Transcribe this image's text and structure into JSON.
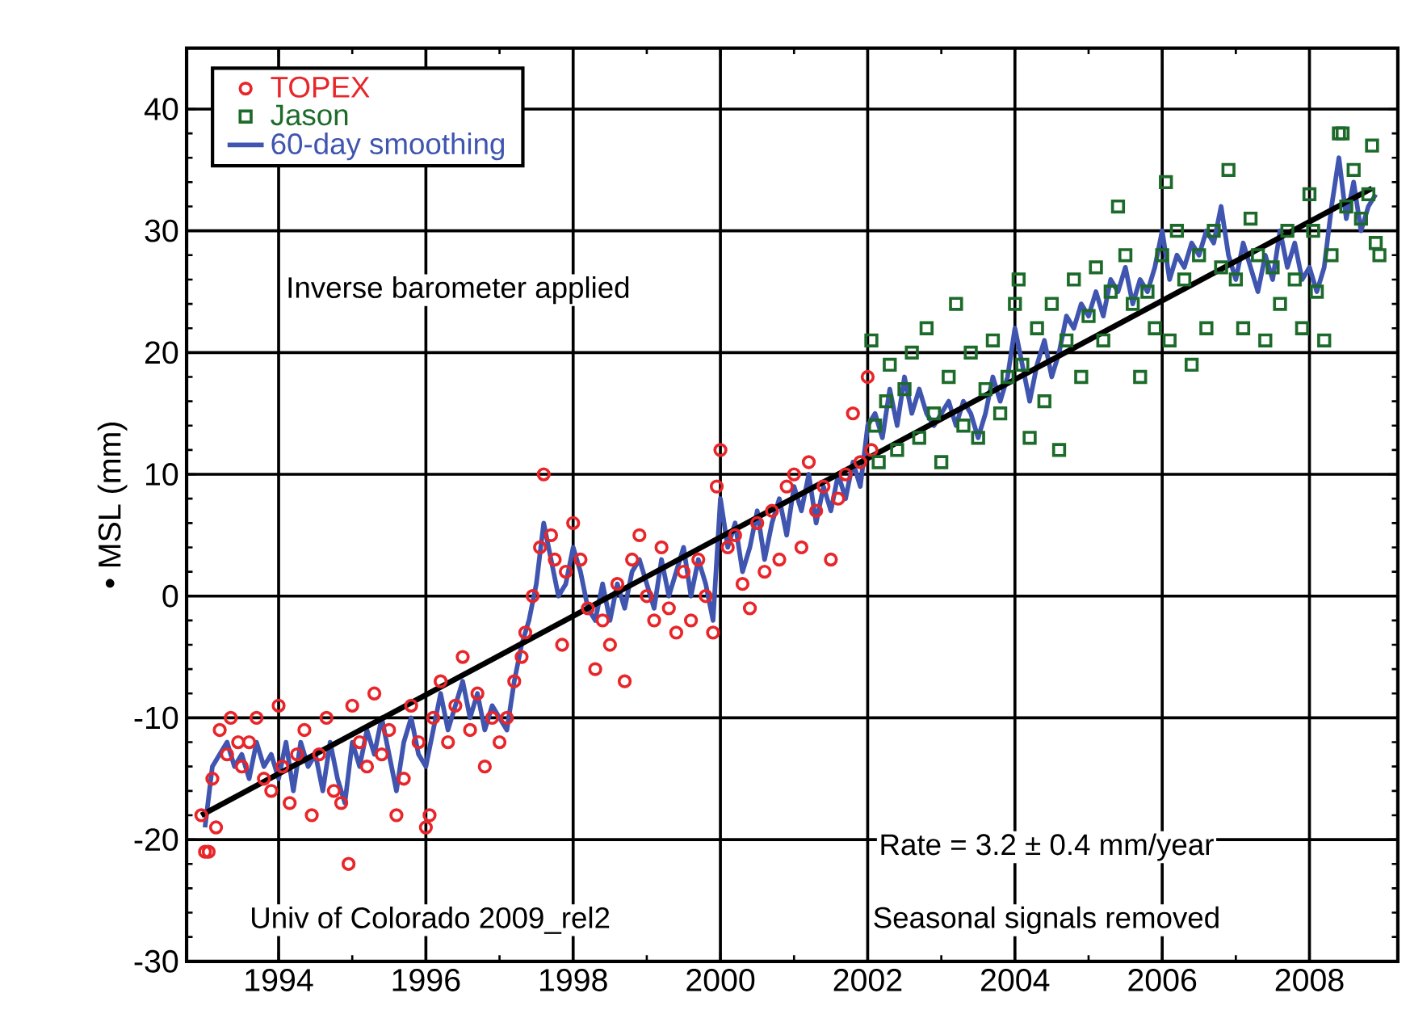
{
  "chart_data": {
    "type": "scatter",
    "ylabel": "• MSL (mm)",
    "xlim": [
      1992.75,
      2009.2
    ],
    "ylim": [
      -30,
      45
    ],
    "xticks": [
      1994,
      1996,
      1998,
      2000,
      2002,
      2004,
      2006,
      2008
    ],
    "yticks": [
      -30,
      -20,
      -10,
      0,
      10,
      20,
      30,
      40
    ],
    "grid": true,
    "legend": "top left",
    "annotations": [
      "Inverse barometer applied",
      "Rate = 3.2 ± 0.4 mm/year",
      "Seasonal signals removed",
      "Univ of Colorado 2009_rel2"
    ],
    "series": [
      {
        "name": "TOPEX",
        "type": "scatter",
        "marker": "circle",
        "color": "#e8262a",
        "x": [
          1992.95,
          1993.0,
          1993.05,
          1993.1,
          1993.15,
          1993.2,
          1993.3,
          1993.35,
          1993.45,
          1993.5,
          1993.6,
          1993.7,
          1993.8,
          1993.9,
          1994.0,
          1994.05,
          1994.15,
          1994.25,
          1994.35,
          1994.45,
          1994.55,
          1994.65,
          1994.75,
          1994.85,
          1994.95,
          1995.0,
          1995.1,
          1995.2,
          1995.3,
          1995.4,
          1995.5,
          1995.6,
          1995.7,
          1995.8,
          1995.9,
          1996.0,
          1996.05,
          1996.1,
          1996.2,
          1996.3,
          1996.4,
          1996.5,
          1996.6,
          1996.7,
          1996.8,
          1996.9,
          1997.0,
          1997.1,
          1997.2,
          1997.3,
          1997.35,
          1997.45,
          1997.55,
          1997.6,
          1997.7,
          1997.75,
          1997.85,
          1997.9,
          1998.0,
          1998.1,
          1998.2,
          1998.3,
          1998.4,
          1998.5,
          1998.6,
          1998.7,
          1998.8,
          1998.9,
          1999.0,
          1999.1,
          1999.2,
          1999.3,
          1999.4,
          1999.5,
          1999.6,
          1999.7,
          1999.8,
          1999.9,
          1999.95,
          2000.0,
          2000.1,
          2000.2,
          2000.3,
          2000.4,
          2000.5,
          2000.6,
          2000.7,
          2000.8,
          2000.9,
          2001.0,
          2001.1,
          2001.2,
          2001.3,
          2001.4,
          2001.5,
          2001.6,
          2001.7,
          2001.8,
          2001.9,
          2002.0,
          2002.05
        ],
        "values": [
          -18,
          -21,
          -21,
          -15,
          -19,
          -11,
          -13,
          -10,
          -12,
          -14,
          -12,
          -10,
          -15,
          -16,
          -9,
          -14,
          -17,
          -13,
          -11,
          -18,
          -13,
          -10,
          -16,
          -17,
          -22,
          -9,
          -12,
          -14,
          -8,
          -13,
          -11,
          -18,
          -15,
          -9,
          -12,
          -19,
          -18,
          -10,
          -7,
          -12,
          -9,
          -5,
          -11,
          -8,
          -14,
          -10,
          -12,
          -10,
          -7,
          -5,
          -3,
          0,
          4,
          10,
          5,
          3,
          -4,
          2,
          6,
          3,
          -1,
          -6,
          -2,
          -4,
          1,
          -7,
          3,
          5,
          0,
          -2,
          4,
          -1,
          -3,
          2,
          -2,
          3,
          0,
          -3,
          9,
          12,
          4,
          5,
          1,
          -1,
          6,
          2,
          7,
          3,
          9,
          10,
          4,
          11,
          7,
          9,
          3,
          8,
          10,
          15,
          11,
          18,
          12
        ]
      },
      {
        "name": "Jason",
        "type": "scatter",
        "marker": "square",
        "color": "#1d6b2a",
        "x": [
          2002.05,
          2002.1,
          2002.15,
          2002.25,
          2002.3,
          2002.4,
          2002.5,
          2002.6,
          2002.7,
          2002.8,
          2002.9,
          2003.0,
          2003.1,
          2003.2,
          2003.3,
          2003.4,
          2003.5,
          2003.6,
          2003.7,
          2003.8,
          2003.9,
          2004.0,
          2004.05,
          2004.1,
          2004.2,
          2004.3,
          2004.4,
          2004.5,
          2004.6,
          2004.7,
          2004.8,
          2004.9,
          2005.0,
          2005.1,
          2005.2,
          2005.3,
          2005.4,
          2005.5,
          2005.6,
          2005.7,
          2005.8,
          2005.9,
          2006.0,
          2006.05,
          2006.1,
          2006.2,
          2006.3,
          2006.4,
          2006.5,
          2006.6,
          2006.7,
          2006.8,
          2006.9,
          2007.0,
          2007.1,
          2007.2,
          2007.3,
          2007.4,
          2007.5,
          2007.6,
          2007.7,
          2007.8,
          2007.9,
          2008.0,
          2008.05,
          2008.1,
          2008.2,
          2008.3,
          2008.4,
          2008.45,
          2008.5,
          2008.6,
          2008.7,
          2008.8,
          2008.85,
          2008.9,
          2008.95
        ],
        "values": [
          21,
          14,
          11,
          16,
          19,
          12,
          17,
          20,
          13,
          22,
          15,
          11,
          18,
          24,
          14,
          20,
          13,
          17,
          21,
          15,
          18,
          24,
          26,
          19,
          13,
          22,
          16,
          24,
          12,
          21,
          26,
          18,
          23,
          27,
          21,
          25,
          32,
          28,
          24,
          18,
          25,
          22,
          28,
          34,
          21,
          30,
          26,
          19,
          28,
          22,
          30,
          27,
          35,
          26,
          22,
          31,
          28,
          21,
          27,
          24,
          30,
          26,
          22,
          33,
          30,
          25,
          21,
          28,
          38,
          38,
          32,
          35,
          31,
          33,
          37,
          29,
          28
        ]
      },
      {
        "name": "60-day smoothing",
        "type": "line",
        "marker": "none",
        "color": "#3f55b0",
        "x": [
          1993.0,
          1993.1,
          1993.2,
          1993.3,
          1993.4,
          1993.5,
          1993.6,
          1993.7,
          1993.8,
          1993.9,
          1994.0,
          1994.1,
          1994.2,
          1994.3,
          1994.4,
          1994.5,
          1994.6,
          1994.7,
          1994.8,
          1994.9,
          1995.0,
          1995.1,
          1995.2,
          1995.3,
          1995.4,
          1995.5,
          1995.6,
          1995.7,
          1995.8,
          1995.9,
          1996.0,
          1996.1,
          1996.2,
          1996.3,
          1996.4,
          1996.5,
          1996.6,
          1996.7,
          1996.8,
          1996.9,
          1997.0,
          1997.1,
          1997.2,
          1997.3,
          1997.4,
          1997.5,
          1997.6,
          1997.7,
          1997.8,
          1997.9,
          1998.0,
          1998.1,
          1998.2,
          1998.3,
          1998.4,
          1998.5,
          1998.6,
          1998.7,
          1998.8,
          1998.9,
          1999.0,
          1999.1,
          1999.2,
          1999.3,
          1999.4,
          1999.5,
          1999.6,
          1999.7,
          1999.8,
          1999.9,
          2000.0,
          2000.1,
          2000.2,
          2000.3,
          2000.4,
          2000.5,
          2000.6,
          2000.7,
          2000.8,
          2000.9,
          2001.0,
          2001.1,
          2001.2,
          2001.3,
          2001.4,
          2001.5,
          2001.6,
          2001.7,
          2001.8,
          2001.9,
          2002.0,
          2002.1,
          2002.2,
          2002.3,
          2002.4,
          2002.5,
          2002.6,
          2002.7,
          2002.8,
          2002.9,
          2003.0,
          2003.1,
          2003.2,
          2003.3,
          2003.4,
          2003.5,
          2003.6,
          2003.7,
          2003.8,
          2003.9,
          2004.0,
          2004.1,
          2004.2,
          2004.3,
          2004.4,
          2004.5,
          2004.6,
          2004.7,
          2004.8,
          2004.9,
          2005.0,
          2005.1,
          2005.2,
          2005.3,
          2005.4,
          2005.5,
          2005.6,
          2005.7,
          2005.8,
          2005.9,
          2006.0,
          2006.1,
          2006.2,
          2006.3,
          2006.4,
          2006.5,
          2006.6,
          2006.7,
          2006.8,
          2006.9,
          2007.0,
          2007.1,
          2007.2,
          2007.3,
          2007.4,
          2007.5,
          2007.6,
          2007.7,
          2007.8,
          2007.9,
          2008.0,
          2008.1,
          2008.2,
          2008.3,
          2008.4,
          2008.5,
          2008.6,
          2008.7,
          2008.8,
          2008.9
        ],
        "values": [
          -19,
          -14,
          -13,
          -12,
          -14,
          -13,
          -15,
          -12,
          -14,
          -13,
          -15,
          -12,
          -16,
          -12,
          -14,
          -13,
          -16,
          -12,
          -15,
          -17,
          -12,
          -14,
          -11,
          -13,
          -10,
          -13,
          -16,
          -12,
          -10,
          -13,
          -14,
          -11,
          -8,
          -11,
          -9,
          -7,
          -10,
          -8,
          -11,
          -9,
          -10,
          -11,
          -7,
          -4,
          -2,
          1,
          6,
          3,
          0,
          1,
          4,
          2,
          -1,
          -2,
          1,
          -2,
          1,
          -1,
          2,
          3,
          1,
          -1,
          3,
          0,
          2,
          4,
          0,
          3,
          1,
          -2,
          8,
          4,
          6,
          2,
          4,
          7,
          3,
          6,
          8,
          5,
          9,
          7,
          10,
          6,
          9,
          7,
          10,
          8,
          11,
          9,
          14,
          15,
          13,
          17,
          14,
          18,
          15,
          17,
          15,
          14,
          15,
          16,
          14,
          16,
          15,
          13,
          15,
          18,
          16,
          18,
          22,
          19,
          16,
          19,
          21,
          18,
          20,
          23,
          22,
          24,
          23,
          25,
          23,
          26,
          25,
          27,
          24,
          26,
          25,
          27,
          30,
          26,
          28,
          27,
          29,
          28,
          30,
          29,
          32,
          28,
          26,
          29,
          27,
          25,
          28,
          26,
          30,
          27,
          29,
          26,
          27,
          25,
          27,
          32,
          36,
          31,
          34,
          30,
          32,
          33
        ]
      },
      {
        "type": "line",
        "marker": "none",
        "color": "#000000",
        "x": [
          1992.95,
          2008.85
        ],
        "values": [
          -18,
          33.5
        ]
      }
    ]
  }
}
